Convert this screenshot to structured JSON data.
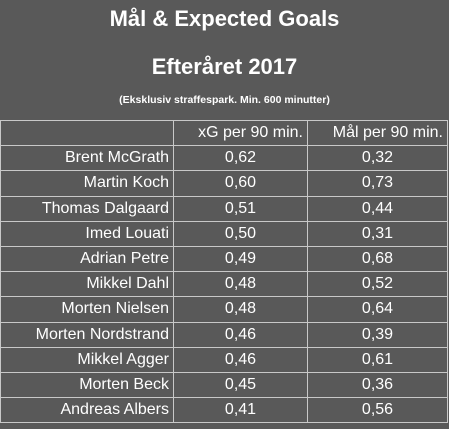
{
  "header": {
    "title": "Mål & Expected Goals",
    "subtitle": "Efteråret 2017",
    "note": "(Eksklusiv straffespark. Min. 600 minutter)"
  },
  "chart_data": {
    "type": "table",
    "title": "Mål & Expected Goals",
    "subtitle": "Efteråret 2017",
    "annotation": "(Eksklusiv straffespark. Min. 600 minutter)",
    "columns": [
      "",
      "xG per 90 min.",
      "Mål per 90 min."
    ],
    "rows": [
      {
        "name": "Brent McGrath",
        "xg": "0,62",
        "goals": "0,32"
      },
      {
        "name": "Martin Koch",
        "xg": "0,60",
        "goals": "0,73"
      },
      {
        "name": "Thomas Dalgaard",
        "xg": "0,51",
        "goals": "0,44"
      },
      {
        "name": "Imed Louati",
        "xg": "0,50",
        "goals": "0,31"
      },
      {
        "name": "Adrian Petre",
        "xg": "0,49",
        "goals": "0,68"
      },
      {
        "name": "Mikkel Dahl",
        "xg": "0,48",
        "goals": "0,52"
      },
      {
        "name": "Morten Nielsen",
        "xg": "0,48",
        "goals": "0,64"
      },
      {
        "name": "Morten Nordstrand",
        "xg": "0,46",
        "goals": "0,39"
      },
      {
        "name": "Mikkel Agger",
        "xg": "0,46",
        "goals": "0,61"
      },
      {
        "name": "Morten Beck",
        "xg": "0,45",
        "goals": "0,36"
      },
      {
        "name": "Andreas Albers",
        "xg": "0,41",
        "goals": "0,56"
      }
    ]
  }
}
